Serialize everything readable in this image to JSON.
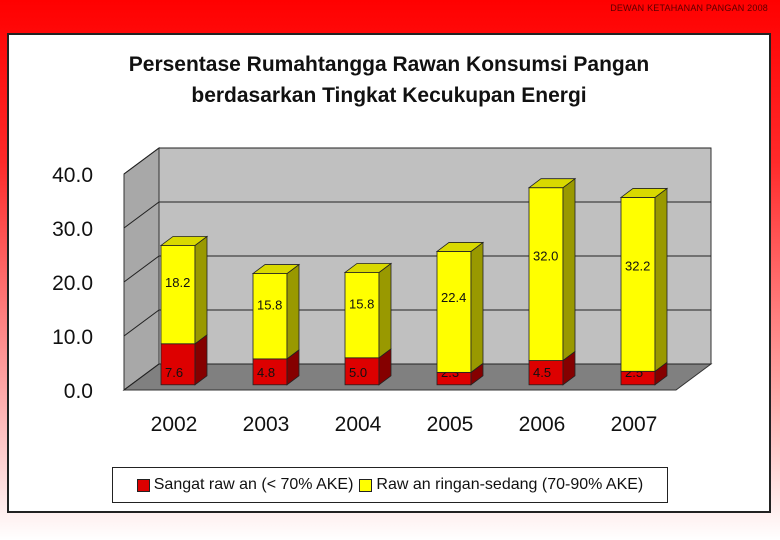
{
  "header": {
    "text": "DEWAN KETAHANAN PANGAN 2008"
  },
  "chart_data": {
    "type": "bar",
    "stacked": true,
    "three_d": true,
    "title_lines": [
      "Persentase Rumahtangga Rawan Konsumsi Pangan",
      "berdasarkan Tingkat Kecukupan Energi"
    ],
    "categories": [
      "2002",
      "2003",
      "2004",
      "2005",
      "2006",
      "2007"
    ],
    "series": [
      {
        "name": "Sangat raw an (< 70% AKE)",
        "values": [
          7.6,
          4.8,
          5.0,
          2.3,
          4.5,
          2.5
        ],
        "color": "#dd0000"
      },
      {
        "name": "Raw an ringan-sedang (70-90% AKE)",
        "values": [
          18.2,
          15.8,
          15.8,
          22.4,
          32.0,
          32.2
        ],
        "color": "#ffff00"
      }
    ],
    "y_ticks": [
      "0.0",
      "10.0",
      "20.0",
      "30.0",
      "40.0"
    ],
    "ylim": [
      0,
      40
    ],
    "grid": true,
    "legend_position": "bottom",
    "wall_color": "#c0c0c0",
    "floor_color": "#808080"
  }
}
